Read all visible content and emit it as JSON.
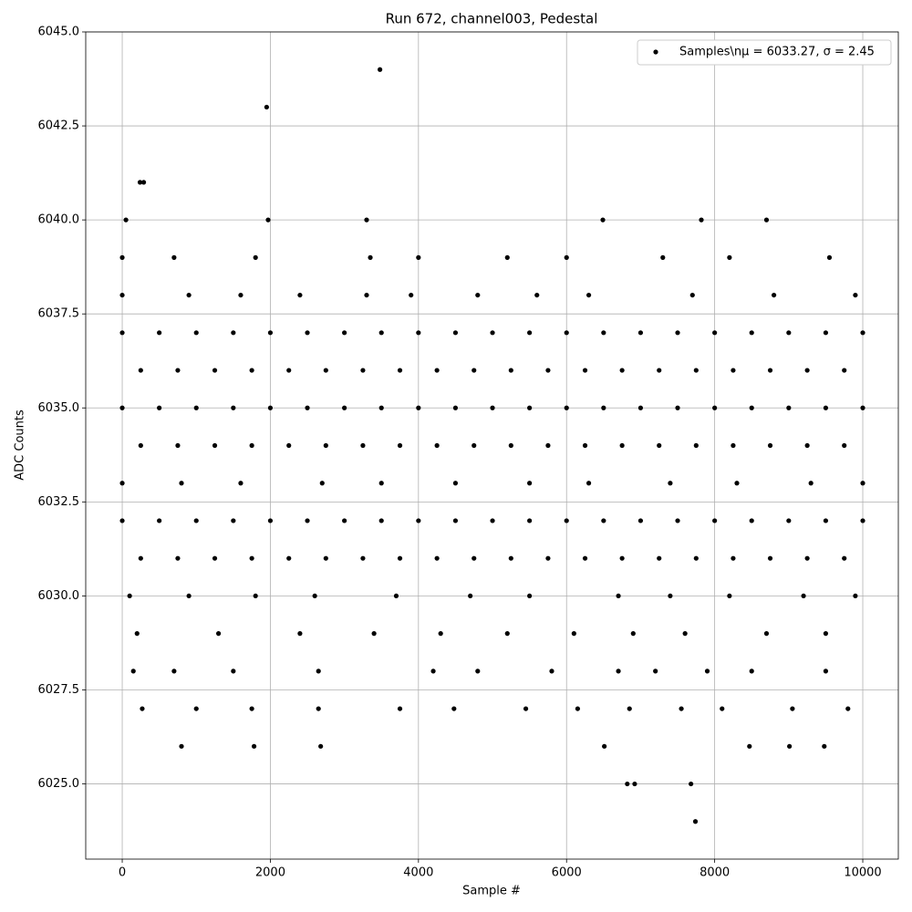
{
  "chart_data": {
    "type": "scatter",
    "title": "Run 672, channel003, Pedestal",
    "x_label": "Sample #",
    "y_label": "ADC Counts",
    "xlim": [
      -493,
      10480
    ],
    "ylim": [
      6023,
      6045
    ],
    "xticks": [
      0,
      2000,
      4000,
      6000,
      8000,
      10000
    ],
    "yticks": [
      {
        "value": 6025,
        "label": "6025.0"
      },
      {
        "value": 6027.5,
        "label": "6027.5"
      },
      {
        "value": 6030,
        "label": "6030.0"
      },
      {
        "value": 6032.5,
        "label": "6032.5"
      },
      {
        "value": 6035,
        "label": "6035.0"
      },
      {
        "value": 6037.5,
        "label": "6037.5"
      },
      {
        "value": 6040,
        "label": "6040.0"
      },
      {
        "value": 6042.5,
        "label": "6042.5"
      },
      {
        "value": 6045,
        "label": "6045.0"
      }
    ],
    "grid": true,
    "legend": "upper right",
    "series": [
      {
        "name": "Samples\\nμ = 6033.27, σ = 2.45",
        "color": "#000000",
        "x": [
          3480,
          1950,
          240,
          290,
          6820,
          6920,
          7680,
          7740,
          800,
          1780,
          2680,
          6510,
          8470,
          9010,
          9480,
          50,
          1970,
          3300,
          6490,
          7820,
          8700,
          0,
          700,
          1800,
          3350,
          4000,
          5200,
          6000,
          7300,
          8200,
          9550,
          0,
          900,
          1600,
          2400,
          3300,
          3900,
          4800,
          5600,
          6300,
          7700,
          8800,
          9900,
          0,
          500,
          1000,
          1500,
          2000,
          2500,
          3000,
          3500,
          4000,
          4500,
          5000,
          5500,
          6000,
          6500,
          7000,
          7500,
          8000,
          8500,
          9000,
          9500,
          10000,
          250,
          750,
          1250,
          1750,
          2250,
          2750,
          3250,
          3750,
          4250,
          4750,
          5250,
          5750,
          6250,
          6750,
          7250,
          7750,
          8250,
          8750,
          9250,
          9750,
          0,
          500,
          1000,
          1500,
          2000,
          2500,
          3000,
          3500,
          4000,
          4500,
          5000,
          5500,
          6000,
          6500,
          7000,
          7500,
          8000,
          8500,
          9000,
          9500,
          10000,
          250,
          750,
          1250,
          1750,
          2250,
          2750,
          3250,
          3750,
          4250,
          4750,
          5250,
          5750,
          6250,
          6750,
          7250,
          7750,
          8250,
          8750,
          9250,
          9750,
          0,
          800,
          1600,
          2700,
          3500,
          4500,
          5500,
          6300,
          7400,
          8300,
          9300,
          10000,
          0,
          500,
          1000,
          1500,
          2000,
          2500,
          3000,
          3500,
          4000,
          4500,
          5000,
          5500,
          6000,
          6500,
          7000,
          7500,
          8000,
          8500,
          9000,
          9500,
          10000,
          250,
          750,
          1250,
          1750,
          2250,
          2750,
          3250,
          3750,
          4250,
          4750,
          5250,
          5750,
          6250,
          6750,
          7250,
          7750,
          8250,
          8750,
          9250,
          9750,
          100,
          900,
          1800,
          2600,
          3700,
          4700,
          5500,
          6700,
          7400,
          8200,
          9200,
          9900,
          200,
          1300,
          2400,
          3400,
          4300,
          5200,
          6100,
          6900,
          7600,
          8700,
          9500,
          150,
          700,
          1500,
          2650,
          4200,
          4800,
          5800,
          6700,
          7200,
          7900,
          8500,
          9500,
          270,
          1000,
          1750,
          2650,
          3750,
          4480,
          5450,
          6150,
          6850,
          7550,
          8100,
          9050,
          9800
        ],
        "values": [
          6044,
          6043,
          6041,
          6041,
          6025,
          6025,
          6025,
          6024,
          6026,
          6026,
          6026,
          6026,
          6026,
          6026,
          6026,
          6040,
          6040,
          6040,
          6040,
          6040,
          6040,
          6039,
          6039,
          6039,
          6039,
          6039,
          6039,
          6039,
          6039,
          6039,
          6039,
          6038,
          6038,
          6038,
          6038,
          6038,
          6038,
          6038,
          6038,
          6038,
          6038,
          6038,
          6038,
          6037,
          6037,
          6037,
          6037,
          6037,
          6037,
          6037,
          6037,
          6037,
          6037,
          6037,
          6037,
          6037,
          6037,
          6037,
          6037,
          6037,
          6037,
          6037,
          6037,
          6037,
          6036,
          6036,
          6036,
          6036,
          6036,
          6036,
          6036,
          6036,
          6036,
          6036,
          6036,
          6036,
          6036,
          6036,
          6036,
          6036,
          6036,
          6036,
          6036,
          6036,
          6035,
          6035,
          6035,
          6035,
          6035,
          6035,
          6035,
          6035,
          6035,
          6035,
          6035,
          6035,
          6035,
          6035,
          6035,
          6035,
          6035,
          6035,
          6035,
          6035,
          6035,
          6034,
          6034,
          6034,
          6034,
          6034,
          6034,
          6034,
          6034,
          6034,
          6034,
          6034,
          6034,
          6034,
          6034,
          6034,
          6034,
          6034,
          6034,
          6034,
          6034,
          6033,
          6033,
          6033,
          6033,
          6033,
          6033,
          6033,
          6033,
          6033,
          6033,
          6033,
          6033,
          6032,
          6032,
          6032,
          6032,
          6032,
          6032,
          6032,
          6032,
          6032,
          6032,
          6032,
          6032,
          6032,
          6032,
          6032,
          6032,
          6032,
          6032,
          6032,
          6032,
          6032,
          6031,
          6031,
          6031,
          6031,
          6031,
          6031,
          6031,
          6031,
          6031,
          6031,
          6031,
          6031,
          6031,
          6031,
          6031,
          6031,
          6031,
          6031,
          6031,
          6031,
          6030,
          6030,
          6030,
          6030,
          6030,
          6030,
          6030,
          6030,
          6030,
          6030,
          6030,
          6030,
          6029,
          6029,
          6029,
          6029,
          6029,
          6029,
          6029,
          6029,
          6029,
          6029,
          6029,
          6028,
          6028,
          6028,
          6028,
          6028,
          6028,
          6028,
          6028,
          6028,
          6028,
          6028,
          6028,
          6027,
          6027,
          6027,
          6027,
          6027,
          6027,
          6027,
          6027,
          6027,
          6027,
          6027,
          6027,
          6027
        ]
      }
    ]
  }
}
